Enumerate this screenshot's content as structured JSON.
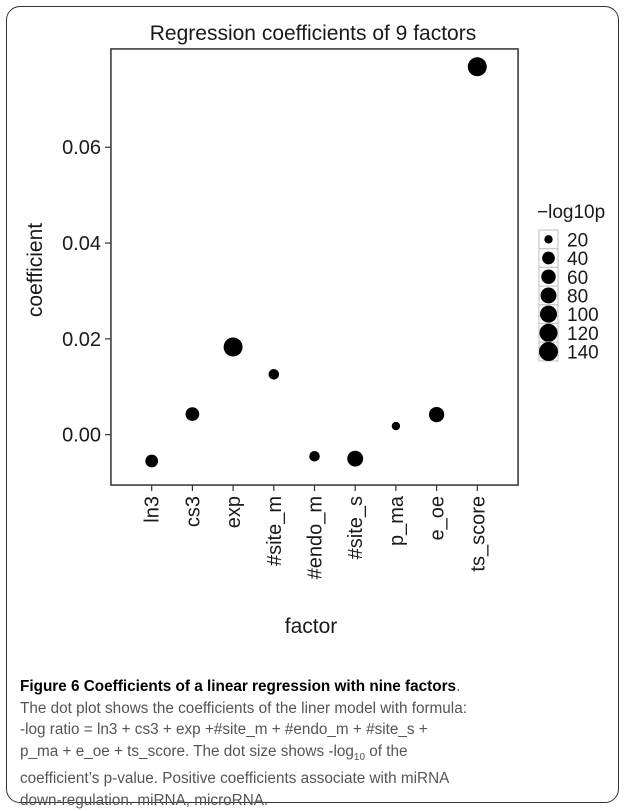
{
  "chart_data": {
    "type": "scatter",
    "title": "Regression coefficients of 9 factors",
    "xlabel": "factor",
    "ylabel": "coefficient",
    "categories": [
      "ln3",
      "cs3",
      "exp",
      "#site_m",
      "#endo_m",
      "#site_s",
      "p_ma",
      "e_oe",
      "ts_score"
    ],
    "values": [
      -0.0055,
      0.0043,
      0.0183,
      0.0126,
      -0.0045,
      -0.005,
      0.0018,
      0.0042,
      0.0768
    ],
    "size_values": [
      40,
      50,
      140,
      25,
      25,
      80,
      20,
      70,
      140
    ],
    "size_label": "−log10p",
    "ylim": [
      -0.0105,
      0.0805
    ],
    "yticks": [
      0.0,
      0.02,
      0.04,
      0.06
    ],
    "ytick_labels": [
      "0.00",
      "0.02",
      "0.04",
      "0.06"
    ],
    "legend": {
      "title": "−log10p",
      "entries": [
        20,
        40,
        60,
        80,
        100,
        120,
        140
      ],
      "labels": [
        "20",
        "40",
        "60",
        "80",
        "100",
        "120",
        "140"
      ],
      "placement": "right"
    },
    "grid": true,
    "point_color": "#000000"
  },
  "caption": {
    "title": "Figure 6 Coefficients of a linear regression with nine factors",
    "title_end": ".",
    "line1": "The dot plot shows the coefficients of the liner model with formula:",
    "line2": "-log ratio = ln3 + cs3 + exp +#site_m + #endo_m + #site_s +",
    "line3": "p_ma + e_oe + ts_score. The dot size shows -log",
    "line3_sub": "10",
    "line3_end": " of the",
    "line4": "coefficient’s p-value. Positive coefficients associate with miRNA",
    "line5": "down-regulation. miRNA, microRNA."
  }
}
